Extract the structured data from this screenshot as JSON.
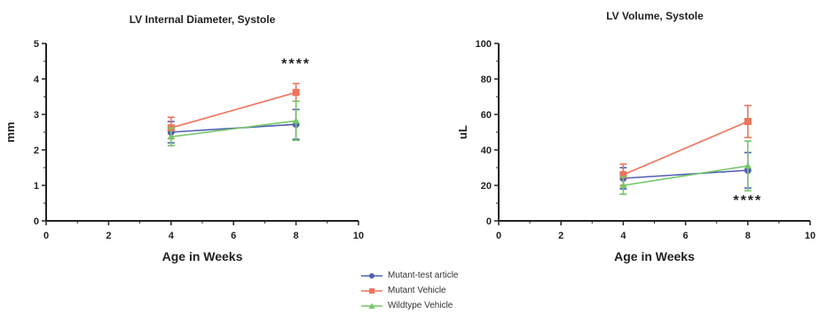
{
  "chart_data": [
    {
      "type": "line",
      "title": "LV Internal Diameter, Systole",
      "xlabel": "Age in Weeks",
      "ylabel": "mm",
      "xlim": [
        0,
        10
      ],
      "ylim": [
        0,
        5
      ],
      "xticks": [
        "0",
        "2",
        "4",
        "6",
        "8",
        "10"
      ],
      "yticks": [
        "0",
        "1",
        "2",
        "3",
        "4",
        "5"
      ],
      "annotation": {
        "text": "****",
        "x": 8,
        "y": 4.45
      },
      "series": [
        {
          "name": "Mutant-test article",
          "x": [
            4,
            8
          ],
          "y": [
            2.5,
            2.72
          ],
          "err": [
            0.3,
            0.42
          ]
        },
        {
          "name": "Mutant Vehicle",
          "x": [
            4,
            8
          ],
          "y": [
            2.62,
            3.62
          ],
          "err": [
            0.3,
            0.25
          ]
        },
        {
          "name": "Wildtype Vehicle",
          "x": [
            4,
            8
          ],
          "y": [
            2.37,
            2.82
          ],
          "err": [
            0.25,
            0.55
          ]
        }
      ]
    },
    {
      "type": "line",
      "title": "LV Volume, Systole",
      "xlabel": "Age in Weeks",
      "ylabel": "uL",
      "xlim": [
        0,
        10
      ],
      "ylim": [
        0,
        100
      ],
      "xticks": [
        "0",
        "2",
        "4",
        "6",
        "8",
        "10"
      ],
      "yticks": [
        "0",
        "20",
        "40",
        "60",
        "80",
        "100"
      ],
      "annotation": {
        "text": "****",
        "x": 8,
        "y": 12
      },
      "series": [
        {
          "name": "Mutant-test article",
          "x": [
            4,
            8
          ],
          "y": [
            24,
            28.5
          ],
          "err": [
            6,
            10
          ]
        },
        {
          "name": "Mutant Vehicle",
          "x": [
            4,
            8
          ],
          "y": [
            26,
            56
          ],
          "err": [
            6,
            9
          ]
        },
        {
          "name": "Wildtype Vehicle",
          "x": [
            4,
            8
          ],
          "y": [
            20,
            31
          ],
          "err": [
            5,
            14
          ]
        }
      ]
    }
  ],
  "legend": {
    "items": [
      {
        "label": "Mutant-test article",
        "color": "#4f5fb3",
        "marker": "circle"
      },
      {
        "label": "Mutant Vehicle",
        "color": "#f0735a",
        "marker": "square"
      },
      {
        "label": "Wildtype Vehicle",
        "color": "#74c767",
        "marker": "triangle"
      }
    ]
  }
}
